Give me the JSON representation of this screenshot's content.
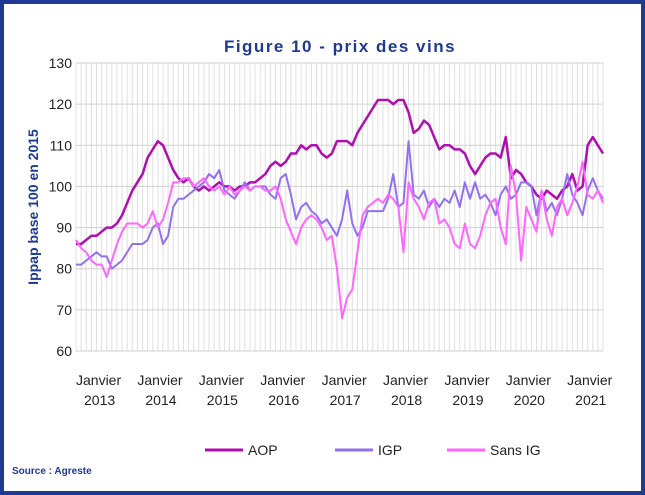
{
  "chart_data": {
    "type": "line",
    "title": "Figure 10 - prix des vins",
    "ylabel": "Ippap base 100 en 2015",
    "source": "Source : Agreste",
    "categories": [
      "Janvier 2013",
      null,
      null,
      null,
      null,
      null,
      null,
      null,
      null,
      null,
      null,
      null,
      "Janvier 2014",
      null,
      null,
      null,
      null,
      null,
      null,
      null,
      null,
      null,
      null,
      null,
      "Janvier 2015",
      null,
      null,
      null,
      null,
      null,
      null,
      null,
      null,
      null,
      null,
      null,
      "Janvier 2016",
      null,
      null,
      null,
      null,
      null,
      null,
      null,
      null,
      null,
      null,
      null,
      "Janvier 2017",
      null,
      null,
      null,
      null,
      null,
      null,
      null,
      null,
      null,
      null,
      null,
      "Janvier 2018",
      null,
      null,
      null,
      null,
      null,
      null,
      null,
      null,
      null,
      null,
      null,
      "Janvier 2019",
      null,
      null,
      null,
      null,
      null,
      null,
      null,
      null,
      null,
      null,
      null,
      "Janvier 2020",
      null,
      null,
      null,
      null,
      null,
      null,
      null,
      null,
      null,
      null,
      null,
      "Janvier 2021",
      null,
      null,
      null,
      null,
      null,
      null,
      null
    ],
    "series": [
      {
        "name": "AOP",
        "color": "#b00fb0",
        "values": [
          86,
          86,
          87,
          88,
          88,
          89,
          90,
          90,
          91,
          93,
          96,
          99,
          101,
          103,
          107,
          109,
          111,
          110,
          107,
          104,
          102,
          101,
          102,
          100,
          99,
          100,
          99,
          100,
          101,
          100,
          100,
          99,
          100,
          100,
          101,
          101,
          102,
          103,
          105,
          106,
          105,
          106,
          108,
          108,
          110,
          109,
          110,
          110,
          108,
          107,
          108,
          111,
          111,
          111,
          110,
          113,
          115,
          117,
          119,
          121,
          121,
          121,
          120,
          121,
          121,
          118,
          113,
          114,
          116,
          115,
          112,
          109,
          110,
          110,
          109,
          109,
          108,
          105,
          103,
          105,
          107,
          108,
          108,
          107,
          112,
          102,
          104,
          103,
          101,
          100,
          98,
          97,
          99,
          98,
          97,
          99,
          100,
          103,
          99,
          100,
          110,
          112,
          110,
          108
        ]
      },
      {
        "name": "IGP",
        "color": "#9370ee",
        "values": [
          81,
          81,
          82,
          83,
          84,
          83,
          83,
          80,
          81,
          82,
          84,
          86,
          86,
          86,
          87,
          90,
          91,
          86,
          88,
          95,
          97,
          97,
          98,
          99,
          100,
          101,
          103,
          102,
          104,
          99,
          98,
          97,
          99,
          101,
          99,
          100,
          100,
          100,
          98,
          97,
          102,
          103,
          98,
          92,
          95,
          96,
          94,
          93,
          91,
          92,
          90,
          88,
          92,
          99,
          91,
          88,
          90,
          94,
          94,
          94,
          94,
          97,
          103,
          95,
          96,
          111,
          98,
          97,
          99,
          95,
          97,
          95,
          97,
          96,
          99,
          95,
          101,
          97,
          101,
          97,
          98,
          96,
          93,
          98,
          100,
          97,
          98,
          101,
          101,
          100,
          93,
          99,
          94,
          96,
          93,
          97,
          103,
          98,
          96,
          93,
          99,
          102,
          99,
          97
        ]
      },
      {
        "name": "Sans IG",
        "color": "#ff66ff",
        "values": [
          87,
          85,
          84,
          82,
          81,
          81,
          78,
          82,
          86,
          89,
          91,
          91,
          91,
          90,
          91,
          94,
          90,
          92,
          96,
          101,
          101,
          102,
          102,
          100,
          101,
          102,
          100,
          99,
          100,
          98,
          100,
          98,
          99,
          100,
          99,
          100,
          100,
          99,
          99,
          100,
          97,
          92,
          89,
          86,
          90,
          92,
          93,
          92,
          90,
          87,
          88,
          80,
          68,
          73,
          75,
          84,
          93,
          95,
          96,
          97,
          96,
          98,
          97,
          95,
          84,
          101,
          97,
          95,
          92,
          96,
          97,
          91,
          92,
          90,
          86,
          85,
          91,
          86,
          85,
          88,
          93,
          96,
          97,
          90,
          86,
          105,
          98,
          82,
          95,
          92,
          89,
          99,
          92,
          88,
          95,
          97,
          93,
          96,
          100,
          106,
          98,
          97,
          99,
          96
        ]
      }
    ],
    "ylim": [
      60,
      130
    ],
    "yticks": [
      60,
      70,
      80,
      90,
      100,
      110,
      120,
      130
    ],
    "grid": true,
    "legend": "bottom"
  }
}
